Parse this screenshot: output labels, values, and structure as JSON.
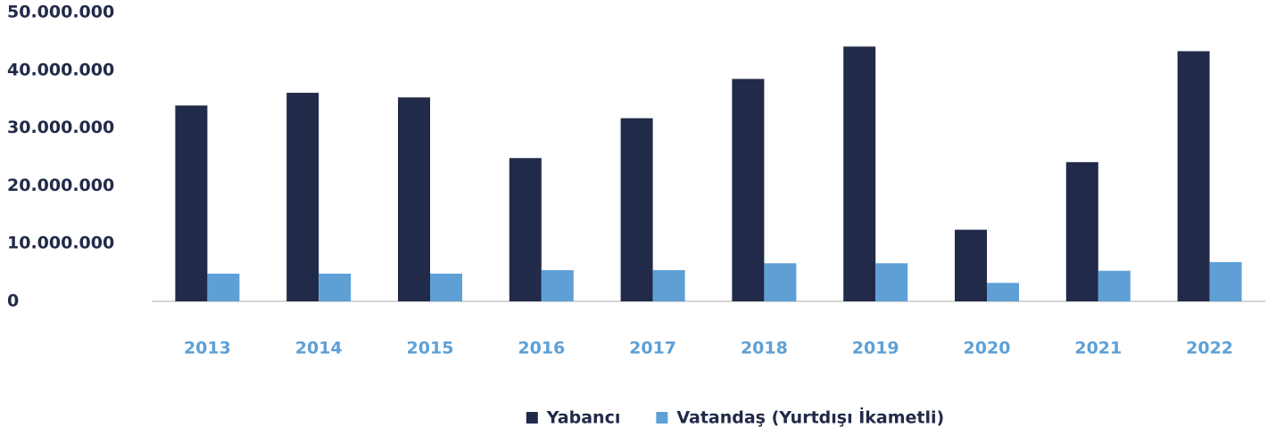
{
  "chart_data": {
    "type": "bar",
    "categories": [
      "2013",
      "2014",
      "2015",
      "2016",
      "2017",
      "2018",
      "2019",
      "2020",
      "2021",
      "2022"
    ],
    "series": [
      {
        "name": "Yabancı",
        "color": "#222a49",
        "values": [
          33900000,
          36100000,
          35300000,
          24800000,
          31700000,
          38500000,
          44100000,
          12400000,
          24100000,
          43300000
        ]
      },
      {
        "name": "Vatandaş (Yurtdışı İkametli)",
        "color": "#5ea0d6",
        "values": [
          4800000,
          4800000,
          4800000,
          5400000,
          5400000,
          6600000,
          6600000,
          3200000,
          5300000,
          6800000
        ]
      }
    ],
    "ylim": [
      0,
      50000000
    ],
    "yticks": [
      0,
      {
        "value": 10000000,
        "label": "10.000.000"
      },
      {
        "value": 20000000,
        "label": "20.000.000"
      },
      {
        "value": 30000000,
        "label": "30.000.000"
      },
      {
        "value": 40000000,
        "label": "40.000.000"
      },
      {
        "value": 50000000,
        "label": "50.000.000"
      }
    ],
    "grid": false,
    "legend": "bottom"
  }
}
